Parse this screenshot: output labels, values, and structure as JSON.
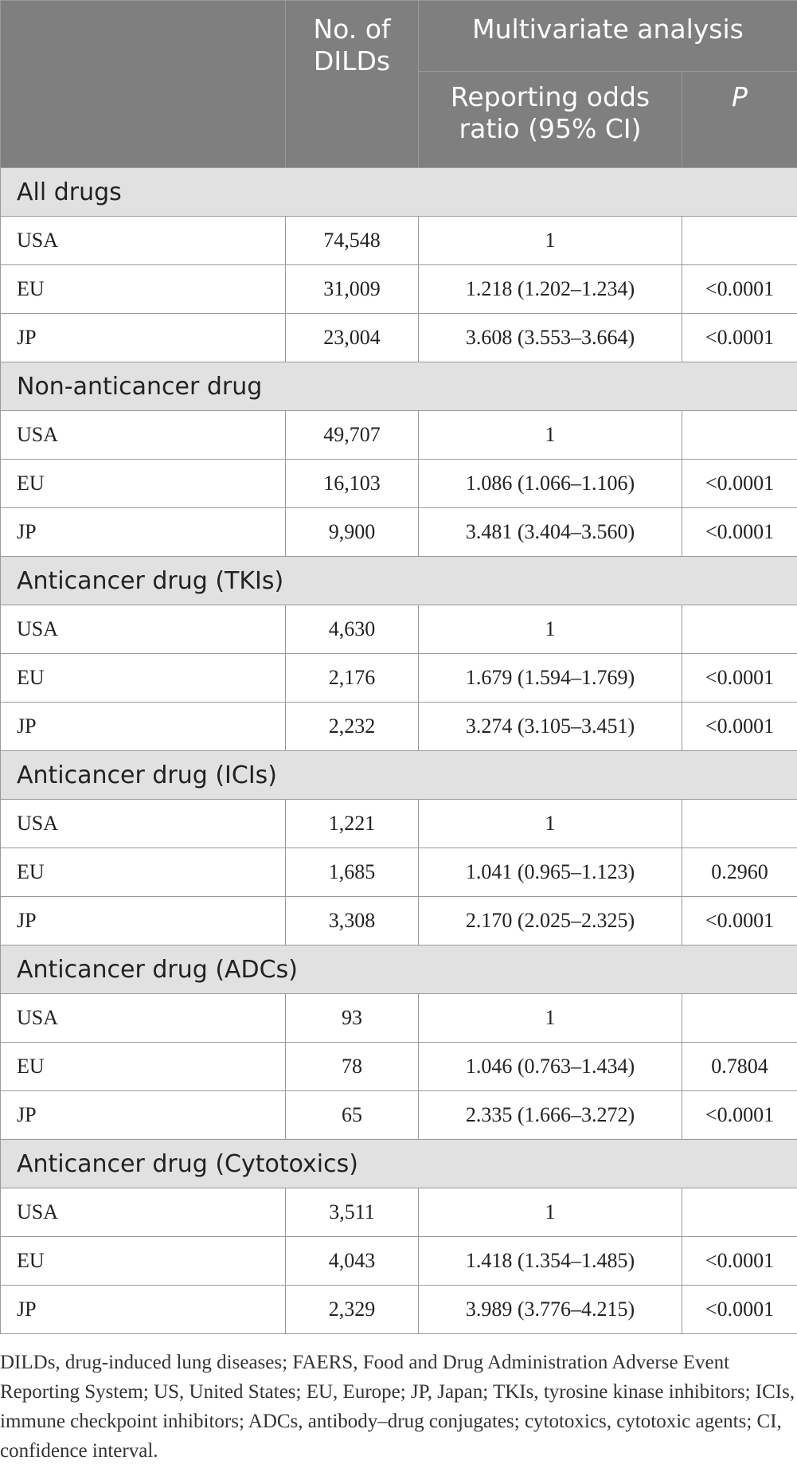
{
  "header": {
    "col_count": "No. of DILDs",
    "group_header": "Multivariate analysis",
    "col_ror": "Reporting odds ratio (95% CI)",
    "col_p": "P"
  },
  "groups": [
    {
      "title": "All drugs",
      "rows": [
        {
          "region": "USA",
          "count": "74,548",
          "ror": "1",
          "p": ""
        },
        {
          "region": "EU",
          "count": "31,009",
          "ror": "1.218 (1.202–1.234)",
          "p": "<0.0001"
        },
        {
          "region": "JP",
          "count": "23,004",
          "ror": "3.608 (3.553–3.664)",
          "p": "<0.0001"
        }
      ]
    },
    {
      "title": "Non-anticancer drug",
      "rows": [
        {
          "region": "USA",
          "count": "49,707",
          "ror": "1",
          "p": ""
        },
        {
          "region": "EU",
          "count": "16,103",
          "ror": "1.086 (1.066–1.106)",
          "p": "<0.0001"
        },
        {
          "region": "JP",
          "count": "9,900",
          "ror": "3.481 (3.404–3.560)",
          "p": "<0.0001"
        }
      ]
    },
    {
      "title": "Anticancer drug (TKIs)",
      "rows": [
        {
          "region": "USA",
          "count": "4,630",
          "ror": "1",
          "p": ""
        },
        {
          "region": "EU",
          "count": "2,176",
          "ror": "1.679 (1.594–1.769)",
          "p": "<0.0001"
        },
        {
          "region": "JP",
          "count": "2,232",
          "ror": "3.274 (3.105–3.451)",
          "p": "<0.0001"
        }
      ]
    },
    {
      "title": "Anticancer drug (ICIs)",
      "rows": [
        {
          "region": "USA",
          "count": "1,221",
          "ror": "1",
          "p": ""
        },
        {
          "region": "EU",
          "count": "1,685",
          "ror": "1.041 (0.965–1.123)",
          "p": "0.2960"
        },
        {
          "region": "JP",
          "count": "3,308",
          "ror": "2.170 (2.025–2.325)",
          "p": "<0.0001"
        }
      ]
    },
    {
      "title": "Anticancer drug (ADCs)",
      "rows": [
        {
          "region": "USA",
          "count": "93",
          "ror": "1",
          "p": ""
        },
        {
          "region": "EU",
          "count": "78",
          "ror": "1.046 (0.763–1.434)",
          "p": "0.7804"
        },
        {
          "region": "JP",
          "count": "65",
          "ror": "2.335 (1.666–3.272)",
          "p": "<0.0001"
        }
      ]
    },
    {
      "title": "Anticancer drug (Cytotoxics)",
      "rows": [
        {
          "region": "USA",
          "count": "3,511",
          "ror": "1",
          "p": ""
        },
        {
          "region": "EU",
          "count": "4,043",
          "ror": "1.418 (1.354–1.485)",
          "p": "<0.0001"
        },
        {
          "region": "JP",
          "count": "2,329",
          "ror": "3.989 (3.776–4.215)",
          "p": "<0.0001"
        }
      ]
    }
  ],
  "footnote": "DILDs, drug-induced lung diseases; FAERS, Food and Drug Administration Adverse Event Reporting System; US, United States; EU, Europe; JP, Japan; TKIs, tyrosine kinase inhibitors; ICIs, immune checkpoint inhibitors; ADCs, antibody–drug conjugates; cytotoxics, cytotoxic agents; CI, confidence interval.",
  "colors": {
    "header_bg": "#7f7f7f",
    "group_bg": "#e1e1e1",
    "border": "#9a9a9a"
  }
}
